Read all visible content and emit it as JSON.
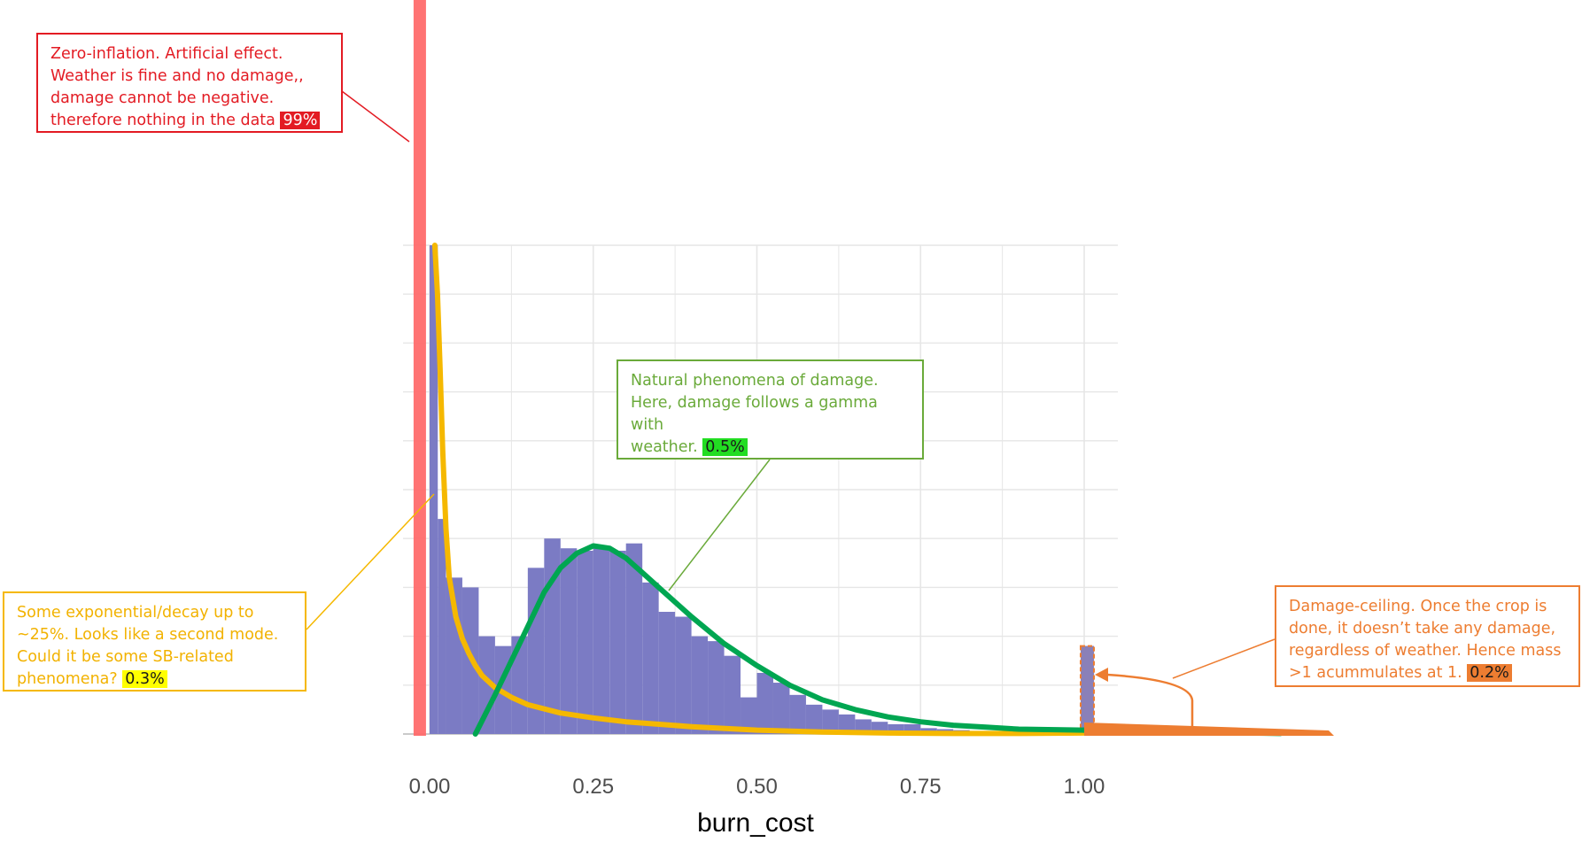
{
  "chart_data": {
    "type": "bar",
    "subtype": "histogram with fitted density curves",
    "xlabel": "burn_cost",
    "ylabel": "",
    "xlim": [
      -0.05,
      1.35
    ],
    "ylim": [
      0,
      1
    ],
    "x_ticks": [
      "0.00",
      "0.25",
      "0.50",
      "0.75",
      "1.00"
    ],
    "grid": true,
    "bin_width": 0.025,
    "histogram_bins_start": [
      0.0,
      0.0125,
      0.025,
      0.05,
      0.075,
      0.1,
      0.125,
      0.15,
      0.175,
      0.2,
      0.225,
      0.25,
      0.275,
      0.3,
      0.325,
      0.35,
      0.375,
      0.4,
      0.425,
      0.45,
      0.475,
      0.5,
      0.525,
      0.55,
      0.575,
      0.6,
      0.625,
      0.65,
      0.675,
      0.7,
      0.725,
      0.75,
      0.775,
      0.8,
      0.825,
      0.85,
      0.875,
      0.9,
      0.925,
      0.95,
      0.975,
      1.0
    ],
    "histogram_bins_end": [
      0.0125,
      0.025,
      0.05,
      0.075,
      0.1,
      0.125,
      0.15,
      0.175,
      0.2,
      0.225,
      0.25,
      0.275,
      0.3,
      0.325,
      0.35,
      0.375,
      0.4,
      0.425,
      0.45,
      0.475,
      0.5,
      0.525,
      0.55,
      0.575,
      0.6,
      0.625,
      0.65,
      0.675,
      0.7,
      0.725,
      0.75,
      0.775,
      0.8,
      0.825,
      0.85,
      0.875,
      0.9,
      0.925,
      0.95,
      0.975,
      1.0,
      1.015
    ],
    "histogram_values": [
      1.0,
      0.44,
      0.32,
      0.3,
      0.2,
      0.18,
      0.2,
      0.34,
      0.4,
      0.38,
      0.375,
      0.38,
      0.375,
      0.39,
      0.31,
      0.25,
      0.24,
      0.2,
      0.19,
      0.16,
      0.075,
      0.125,
      0.105,
      0.08,
      0.06,
      0.05,
      0.04,
      0.03,
      0.025,
      0.02,
      0.02,
      0.012,
      0.01,
      0.008,
      0.006,
      0.004,
      0.003,
      0.003,
      0.003,
      0.003,
      0.002,
      0.18
    ],
    "series": [
      {
        "color": "#f5b800",
        "x": [
          0.008,
          0.012,
          0.016,
          0.02,
          0.025,
          0.03,
          0.04,
          0.05,
          0.06,
          0.07,
          0.08,
          0.1,
          0.125,
          0.15,
          0.2,
          0.25,
          0.3,
          0.4,
          0.5,
          0.6,
          0.7,
          0.8,
          0.9,
          1.0
        ],
        "values": [
          1.0,
          0.9,
          0.75,
          0.58,
          0.42,
          0.32,
          0.24,
          0.195,
          0.165,
          0.14,
          0.12,
          0.095,
          0.075,
          0.06,
          0.043,
          0.033,
          0.025,
          0.015,
          0.008,
          0.004,
          0.002,
          0.001,
          0.001,
          0.002
        ]
      },
      {
        "color": "#00a651",
        "x": [
          0.07,
          0.1,
          0.125,
          0.15,
          0.175,
          0.2,
          0.225,
          0.25,
          0.275,
          0.3,
          0.325,
          0.35,
          0.4,
          0.45,
          0.5,
          0.55,
          0.6,
          0.65,
          0.7,
          0.75,
          0.8,
          0.85,
          0.9,
          1.0,
          1.1,
          1.2,
          1.3
        ],
        "values": [
          0.0,
          0.08,
          0.15,
          0.22,
          0.29,
          0.34,
          0.37,
          0.385,
          0.38,
          0.36,
          0.33,
          0.3,
          0.24,
          0.185,
          0.14,
          0.1,
          0.07,
          0.05,
          0.035,
          0.025,
          0.018,
          0.014,
          0.01,
          0.008,
          0.005,
          0.003,
          0.001
        ]
      }
    ],
    "zero_mass_bar": {
      "x": -0.015,
      "color": "#ff6b6b"
    },
    "ceiling_bar": {
      "x": 1.0,
      "value": 0.18,
      "color": "#ed7d31"
    },
    "annotations": [
      {
        "id": "zero",
        "color": "#e31b23",
        "lines": [
          "Zero-inflation. Artificial effect.",
          "Weather is fine and no damage,,",
          "damage cannot be negative.",
          "therefore nothing in the data "
        ],
        "pct": "99%"
      },
      {
        "id": "gamma",
        "color": "#6aaa3a",
        "lines": [
          "Natural  phenomena of damage.",
          "Here, damage follows a gamma with",
          "weather. "
        ],
        "pct": "0.5%"
      },
      {
        "id": "decay",
        "color": "#f5b800",
        "lines": [
          "Some exponential/decay up to",
          "~25%. Looks like a second mode.",
          "Could it be some SB-related",
          "phenomena? "
        ],
        "pct": "0.3%"
      },
      {
        "id": "ceiling",
        "color": "#ed7d31",
        "lines": [
          "Damage-ceiling. Once the crop is",
          "done, it doesn’t take any damage,",
          "regardless of weather. Hence mass",
          ">1 acummulates at 1.  "
        ],
        "pct": "0.2%"
      }
    ]
  }
}
